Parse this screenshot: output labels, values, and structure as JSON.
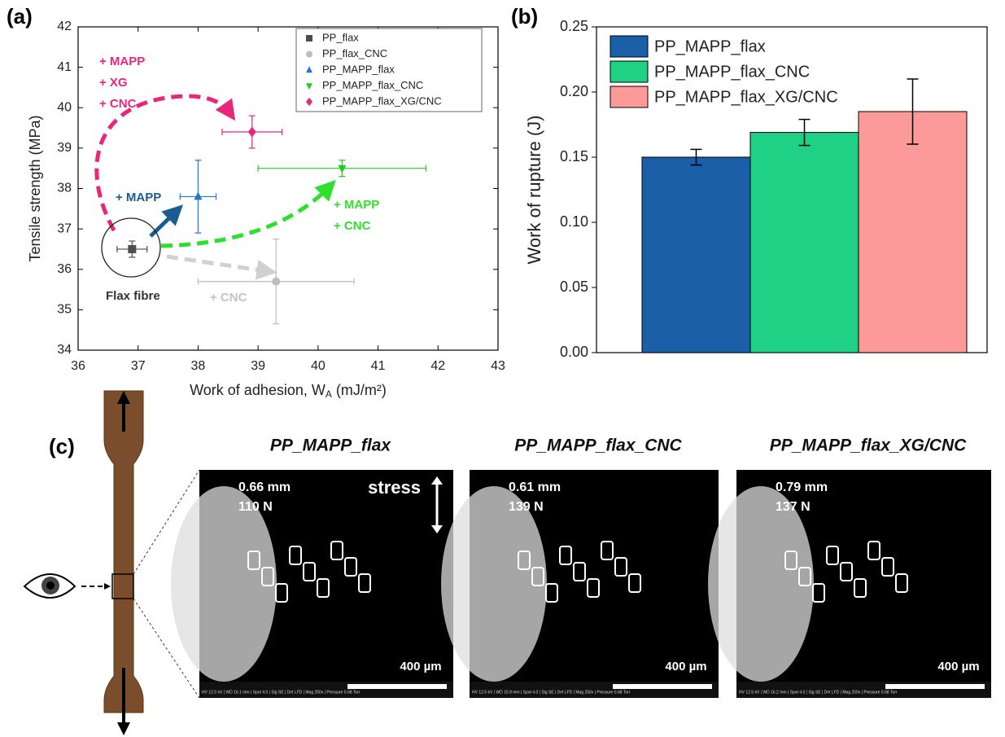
{
  "panel_labels": [
    "(a)",
    "(b)",
    "(c)"
  ],
  "chart_data": [
    {
      "type": "scatter",
      "x_label": [
        "Work of adhesion, W",
        "A",
        " (mJ/m²)"
      ],
      "y_label": "Tensile strength (MPa)",
      "xlim": [
        36,
        43
      ],
      "xticks": [
        36,
        37,
        38,
        39,
        40,
        41,
        42,
        43
      ],
      "ylim": [
        34,
        42
      ],
      "yticks": [
        34,
        35,
        36,
        37,
        38,
        39,
        40,
        41,
        42
      ],
      "legend": "top-right",
      "series": [
        {
          "name": "PP_flax",
          "color": "#4d4d4d",
          "marker": "square",
          "x": [
            36.9
          ],
          "values": [
            36.5
          ],
          "xerr": [
            0.25
          ],
          "yerr": [
            0.2
          ]
        },
        {
          "name": "PP_flax_CNC",
          "color": "#bdbdbd",
          "marker": "circle",
          "x": [
            39.3
          ],
          "values": [
            35.7
          ],
          "xerr": [
            1.3
          ],
          "yerr": [
            1.05
          ]
        },
        {
          "name": "PP_MAPP_flax",
          "color": "#1f77d0",
          "marker": "triangle-up",
          "x": [
            38.0
          ],
          "values": [
            37.8
          ],
          "xerr": [
            0.3
          ],
          "yerr": [
            0.9
          ]
        },
        {
          "name": "PP_MAPP_flax_CNC",
          "color": "#22cc22",
          "marker": "triangle-down",
          "x": [
            40.4
          ],
          "values": [
            38.5
          ],
          "xerr": [
            1.4
          ],
          "yerr": [
            0.2
          ]
        },
        {
          "name": "PP_MAPP_flax_XG/CNC",
          "color": "#e8267a",
          "marker": "diamond",
          "x": [
            38.9
          ],
          "values": [
            39.4
          ],
          "xerr": [
            0.5
          ],
          "yerr": [
            0.4
          ]
        }
      ],
      "annotations": [
        {
          "lines": [
            "+ MAPP",
            "+ XG",
            "+ CNC"
          ],
          "color": "#e8267a"
        },
        {
          "lines": [
            "+ MAPP"
          ],
          "color": "#1b5b94"
        },
        {
          "lines": [
            "+ MAPP",
            "+ CNC"
          ],
          "color": "#2ee02e"
        },
        {
          "lines": [
            "+ CNC"
          ],
          "color": "#c4c4c4"
        },
        {
          "lines": [
            "Flax fibre"
          ],
          "color": "#333333"
        }
      ]
    },
    {
      "type": "bar",
      "y_label": "Work of rupture (J)",
      "ylim": [
        0,
        0.25
      ],
      "yticks": [
        {
          "value": 0,
          "label": "0.00"
        },
        {
          "value": 0.05,
          "label": "0.05"
        },
        {
          "value": 0.1,
          "label": "0.10"
        },
        {
          "value": 0.15,
          "label": "0.15"
        },
        {
          "value": 0.2,
          "label": "0.20"
        },
        {
          "value": 0.25,
          "label": "0.25"
        }
      ],
      "legend": "top-left",
      "series": [
        {
          "name": "PP_MAPP_flax",
          "color": "#1a5fa8",
          "values": [
            0.15
          ],
          "errors": [
            0.006
          ]
        },
        {
          "name": "PP_MAPP_flax_CNC",
          "color": "#1ed184",
          "values": [
            0.169
          ],
          "errors": [
            0.01
          ]
        },
        {
          "name": "PP_MAPP_flax_XG/CNC",
          "color": "#fc9a9a",
          "values": [
            0.185
          ],
          "errors": [
            0.025
          ]
        }
      ]
    }
  ],
  "micrographs": [
    {
      "title": "PP_MAPP_flax",
      "width": "0.66 mm",
      "load": "110 N",
      "arrow_label": "stress",
      "scale": "400 µm",
      "info": "HV 12.5 kV | WD 16.1 mm | Spot 4.0 | Sig SE | Det LFD | Mag 250x | Pressure 0.68 Torr"
    },
    {
      "title": "PP_MAPP_flax_CNC",
      "width": "0.61 mm",
      "load": "139 N",
      "scale": "400 µm",
      "info": "HV 12.5 kV | WD 15.9 mm | Spot 4.0 | Sig SE | Det LFD | Mag 250x | Pressure 0.68 Torr"
    },
    {
      "title": "PP_MAPP_flax_XG/CNC",
      "width": "0.79 mm",
      "load": "137 N",
      "scale": "400 µm",
      "info": "HV 12.5 kV | WD 16.2 mm | Spot 4.0 | Sig SE | Det LFD | Mag 250x | Pressure 0.68 Torr"
    }
  ]
}
